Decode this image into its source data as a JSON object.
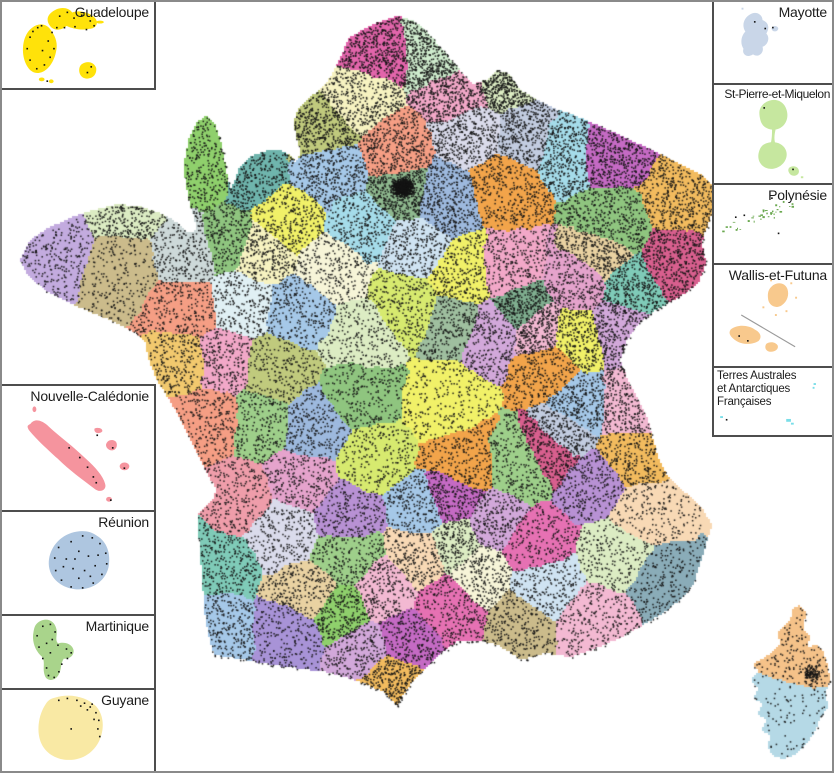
{
  "figure": {
    "background": "#ffffff",
    "outer_border_color": "#8a8a8a",
    "inset_border_color": "#4d4d4d",
    "dot_color": "#141414"
  },
  "insets": {
    "guadeloupe": {
      "label": "Guadeloupe",
      "color": "#ffe20a"
    },
    "nouvelle_caledonie": {
      "label": "Nouvelle-Calédonie",
      "color": "#f5949e"
    },
    "reunion": {
      "label": "Réunion",
      "color": "#aec6e0"
    },
    "martinique": {
      "label": "Martinique",
      "color": "#a9d48b"
    },
    "guyane": {
      "label": "Guyane",
      "color": "#f9e9a4"
    },
    "mayotte": {
      "label": "Mayotte",
      "color": "#c9d6e8"
    },
    "st_pierre_et_miquelon": {
      "label": "St-Pierre-et-Miquelon",
      "color": "#c6e79f"
    },
    "polynesie": {
      "label": "Polynésie",
      "color": "#6aa84f"
    },
    "wallis_et_futuna": {
      "label": "Wallis-et-Futuna",
      "color": "#f8c98d",
      "line_color": "#9a9a9a"
    },
    "terres_australes": {
      "label_line1": "Terres Australes",
      "label_line2": "et Antarctiques",
      "label_line3": "Françaises",
      "color": "#7adee8"
    }
  },
  "map": {
    "palette": [
      "#e265ab",
      "#cfeccd",
      "#f7f3c1",
      "#c0ca7d",
      "#f59e84",
      "#f2a8c8",
      "#dadbeb",
      "#f2a44a",
      "#a5dcea",
      "#c56ac4",
      "#f2bb5e",
      "#8fc57f",
      "#d85f8e",
      "#8fb98f",
      "#9db9de",
      "#e9d2a2",
      "#f1f168",
      "#a893d7",
      "#7fcbb8",
      "#a5c8e8",
      "#e5a3cc",
      "#d2a8da",
      "#cfe3f2",
      "#dcecc3",
      "#cbbb8b",
      "#f3b9d2",
      "#8aacb8",
      "#f8d9b5",
      "#d7ea6f",
      "#b891d4",
      "#e671b3",
      "#9ecf8a",
      "#cdd9d9",
      "#e0f0f4",
      "#f2c96e",
      "#ef9daa",
      "#6fb5ad",
      "#f5c289",
      "#b5d9e6",
      "#f7f5d8",
      "#c6e79f",
      "#c2cce0",
      "#8fd06c",
      "#9fbf9f",
      "#7fae8f",
      "#c3abdf"
    ]
  }
}
